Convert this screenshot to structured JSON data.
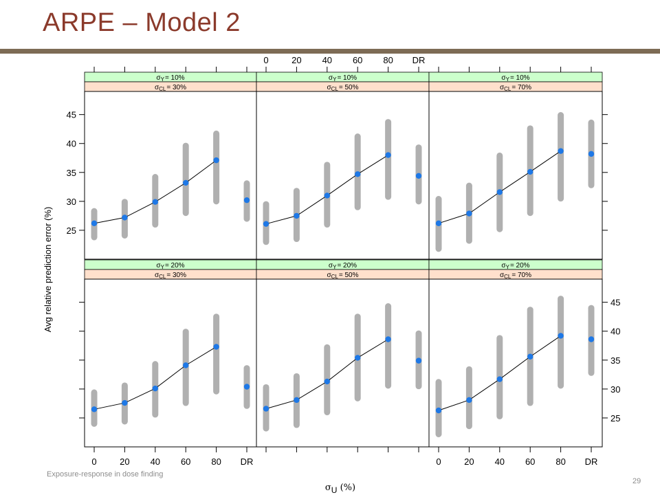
{
  "slide": {
    "title": "ARPE – Model 2",
    "footer": "Exposure-response in dose finding",
    "page_number": "29"
  },
  "colors": {
    "title": "#8B3A2B",
    "rule": "#7D6B55",
    "strip_top": "#CCFFCC",
    "strip_bottom": "#FFE0CC",
    "interval": "#B0B0B0",
    "point": "#1E78E6",
    "line": "#000000"
  },
  "chart_data": {
    "type": "scatter",
    "layout": "trellis 3 columns x 2 rows",
    "xlabel": "σU (%)",
    "ylabel": "Avg relative prediction error (%)",
    "categories": [
      "0",
      "20",
      "40",
      "60",
      "80",
      "DR"
    ],
    "ylim": [
      20,
      49
    ],
    "yticks": [
      25,
      30,
      35,
      40,
      45
    ],
    "panels": [
      {
        "strip_top": "σY = 10%",
        "strip_bottom": "σCL = 30%",
        "mean": [
          26.2,
          27.2,
          29.9,
          33.2,
          37.1,
          30.2
        ],
        "low": [
          23.8,
          24.1,
          26.0,
          28.0,
          30.0,
          27.0
        ],
        "high": [
          28.3,
          29.9,
          34.2,
          39.6,
          41.7,
          33.1
        ]
      },
      {
        "strip_top": "σY = 10%",
        "strip_bottom": "σCL = 50%",
        "mean": [
          26.1,
          27.5,
          31.0,
          34.7,
          38.0,
          34.4
        ],
        "low": [
          23.0,
          23.5,
          26.0,
          29.0,
          30.8,
          30.0
        ],
        "high": [
          29.5,
          31.8,
          36.3,
          41.2,
          43.7,
          39.3
        ]
      },
      {
        "strip_top": "σY = 10%",
        "strip_bottom": "σCL = 70%",
        "mean": [
          26.2,
          27.9,
          31.6,
          35.1,
          38.7,
          38.2
        ],
        "low": [
          21.8,
          23.2,
          25.2,
          28.0,
          30.5,
          32.8
        ],
        "high": [
          30.4,
          32.7,
          37.9,
          42.6,
          44.9,
          43.6
        ]
      },
      {
        "strip_top": "σY = 20%",
        "strip_bottom": "σCL = 30%",
        "mean": [
          26.5,
          27.6,
          30.1,
          34.1,
          37.3,
          30.4
        ],
        "low": [
          24.0,
          24.4,
          25.6,
          27.6,
          29.6,
          27.1
        ],
        "high": [
          29.4,
          30.6,
          34.3,
          39.9,
          42.5,
          33.6
        ]
      },
      {
        "strip_top": "σY = 20%",
        "strip_bottom": "σCL = 50%",
        "mean": [
          26.6,
          28.1,
          31.3,
          35.4,
          38.6,
          34.9
        ],
        "low": [
          23.2,
          23.8,
          26.0,
          28.4,
          30.6,
          30.5
        ],
        "high": [
          30.3,
          32.2,
          37.2,
          42.5,
          44.3,
          39.6
        ]
      },
      {
        "strip_top": "σY = 20%",
        "strip_bottom": "σCL = 70%",
        "mean": [
          26.3,
          28.1,
          31.7,
          35.6,
          39.2,
          38.6
        ],
        "low": [
          22.2,
          23.6,
          25.3,
          27.6,
          30.6,
          32.8
        ],
        "high": [
          31.2,
          33.4,
          38.8,
          43.7,
          45.6,
          44.0
        ]
      }
    ]
  }
}
